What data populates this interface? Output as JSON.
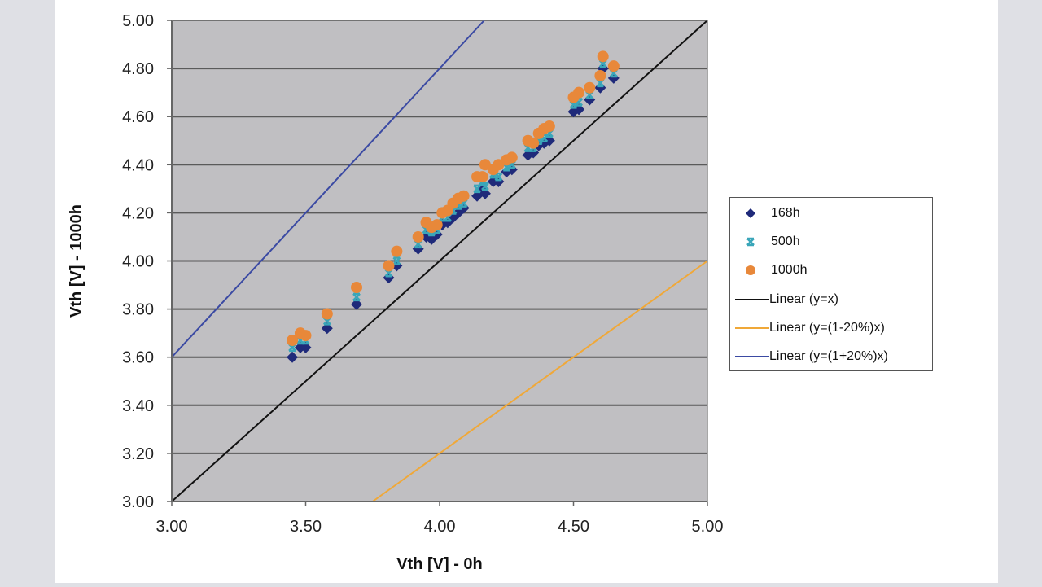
{
  "chart_data": {
    "type": "scatter",
    "title": "",
    "xlabel": "Vth [V] - 0h",
    "ylabel": "Vth [V] - 1000h",
    "xlim": [
      3.0,
      5.0
    ],
    "ylim": [
      3.0,
      5.0
    ],
    "x_ticks": [
      "3.00",
      "3.50",
      "4.00",
      "4.50",
      "5.00"
    ],
    "y_ticks": [
      "3.00",
      "3.20",
      "3.40",
      "3.60",
      "3.80",
      "4.00",
      "4.20",
      "4.40",
      "4.60",
      "4.80",
      "5.00"
    ],
    "grid": "horizontal",
    "plot_background": "#c0bfc2",
    "legend_position": "right",
    "x": [
      3.45,
      3.48,
      3.5,
      3.58,
      3.69,
      3.81,
      3.84,
      3.92,
      3.95,
      3.97,
      3.99,
      4.01,
      4.03,
      4.05,
      4.07,
      4.09,
      4.14,
      4.16,
      4.17,
      4.2,
      4.22,
      4.25,
      4.27,
      4.33,
      4.35,
      4.37,
      4.39,
      4.41,
      4.5,
      4.52,
      4.56,
      4.6,
      4.61,
      4.65
    ],
    "series": [
      {
        "name": "168h",
        "marker": "diamond",
        "color": "#1f2a7a",
        "values": [
          3.6,
          3.64,
          3.64,
          3.72,
          3.82,
          3.93,
          3.98,
          4.05,
          4.1,
          4.09,
          4.11,
          4.15,
          4.16,
          4.18,
          4.2,
          4.22,
          4.27,
          4.3,
          4.28,
          4.33,
          4.33,
          4.37,
          4.38,
          4.44,
          4.45,
          4.48,
          4.49,
          4.5,
          4.62,
          4.63,
          4.67,
          4.72,
          4.8,
          4.76
        ]
      },
      {
        "name": "500h",
        "marker": "x",
        "color": "#3aa6b9",
        "values": [
          3.64,
          3.67,
          3.67,
          3.75,
          3.85,
          3.95,
          4.0,
          4.07,
          4.13,
          4.12,
          4.13,
          4.18,
          4.18,
          4.21,
          4.23,
          4.24,
          4.3,
          4.33,
          4.31,
          4.36,
          4.35,
          4.39,
          4.4,
          4.47,
          4.47,
          4.5,
          4.51,
          4.53,
          4.65,
          4.66,
          4.69,
          4.74,
          4.82,
          4.78
        ]
      },
      {
        "name": "1000h",
        "marker": "circle",
        "color": "#e8883a",
        "values": [
          3.67,
          3.7,
          3.69,
          3.78,
          3.89,
          3.98,
          4.04,
          4.1,
          4.16,
          4.14,
          4.15,
          4.2,
          4.21,
          4.24,
          4.26,
          4.27,
          4.35,
          4.35,
          4.4,
          4.38,
          4.4,
          4.42,
          4.43,
          4.5,
          4.49,
          4.53,
          4.55,
          4.56,
          4.68,
          4.7,
          4.72,
          4.77,
          4.85,
          4.81
        ]
      }
    ],
    "lines": [
      {
        "name": "Linear (y=x)",
        "slope": 1.0,
        "color": "#111111"
      },
      {
        "name": "Linear (y=(1-20%)x)",
        "slope": 0.8,
        "color": "#f0a838"
      },
      {
        "name": "Linear (y=(1+20%)x)",
        "slope": 1.2,
        "color": "#3b4aa3"
      }
    ]
  },
  "legend": {
    "items": [
      {
        "label": "168h",
        "kind": "diamond",
        "color": "#1f2a7a"
      },
      {
        "label": "500h",
        "kind": "x",
        "color": "#3aa6b9"
      },
      {
        "label": "1000h",
        "kind": "circle",
        "color": "#e8883a"
      },
      {
        "label": "Linear (y=x)",
        "kind": "line",
        "color": "#111111"
      },
      {
        "label": "Linear (y=(1-20%)x)",
        "kind": "line",
        "color": "#f0a838"
      },
      {
        "label": "Linear (y=(1+20%)x)",
        "kind": "line",
        "color": "#3b4aa3"
      }
    ]
  }
}
